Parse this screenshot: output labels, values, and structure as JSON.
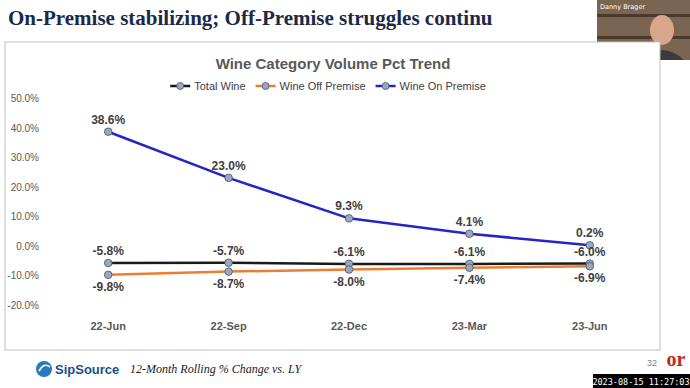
{
  "slide": {
    "heading": "On-Premise stabilizing; Off-Premise struggles continu",
    "footnote": "12-Month Rolling % Change vs. LY",
    "logo": "SipSource",
    "page_number": 32,
    "presenter": "Danny Brager",
    "timestamp": "2023-08-15 11:27:03",
    "corner_logo": "or"
  },
  "chart_data": {
    "type": "line",
    "title": "Wine Category Volume Pct Trend",
    "categories": [
      "22-Jun",
      "22-Sep",
      "22-Dec",
      "23-Mar",
      "23-Jun"
    ],
    "series": [
      {
        "name": "Total Wine",
        "color": "#1a1a1a",
        "marker": "circle",
        "values": [
          -5.8,
          -5.7,
          -6.1,
          -6.1,
          -6.0
        ],
        "value_labels": [
          "-5.8%",
          "-5.7%",
          "-6.1%",
          "-6.1%",
          "-6.0%"
        ]
      },
      {
        "name": "Wine Off Premise",
        "color": "#ed7d31",
        "marker": "circle",
        "values": [
          -9.8,
          -8.7,
          -8.0,
          -7.4,
          -6.9
        ],
        "value_labels": [
          "-9.8%",
          "-8.7%",
          "-8.0%",
          "-7.4%",
          "-6.9%"
        ]
      },
      {
        "name": "Wine On Premise",
        "color": "#2424c8",
        "marker": "circle",
        "values": [
          38.6,
          23.0,
          9.3,
          4.1,
          0.2
        ],
        "value_labels": [
          "38.6%",
          "23.0%",
          "9.3%",
          "4.1%",
          "0.2%"
        ]
      }
    ],
    "ylim": [
      -20,
      50
    ],
    "yticks": [
      {
        "value": -20,
        "label": "-20.0%"
      },
      {
        "value": -10,
        "label": "-10.0%"
      },
      {
        "value": 0,
        "label": "0.0%"
      },
      {
        "value": 10,
        "label": "10.0%"
      },
      {
        "value": 20,
        "label": "20.0%"
      },
      {
        "value": 30,
        "label": "30.0%"
      },
      {
        "value": 40,
        "label": "40.0%"
      },
      {
        "value": 50,
        "label": "50.0%"
      }
    ],
    "grid": false,
    "legend": "top",
    "data_labels": true
  }
}
